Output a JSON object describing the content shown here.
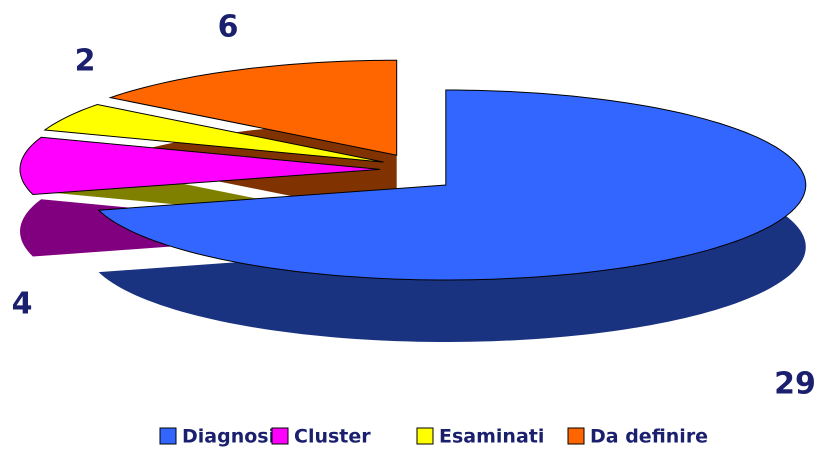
{
  "chart_data": {
    "type": "pie",
    "categories": [
      "Diagnosi",
      "Cluster",
      "Esaminati",
      "Da definire"
    ],
    "values": [
      29,
      4,
      2,
      6
    ],
    "colors": [
      "#3366ff",
      "#ff00ff",
      "#ffff00",
      "#ff6600"
    ],
    "legend": "bottom"
  }
}
